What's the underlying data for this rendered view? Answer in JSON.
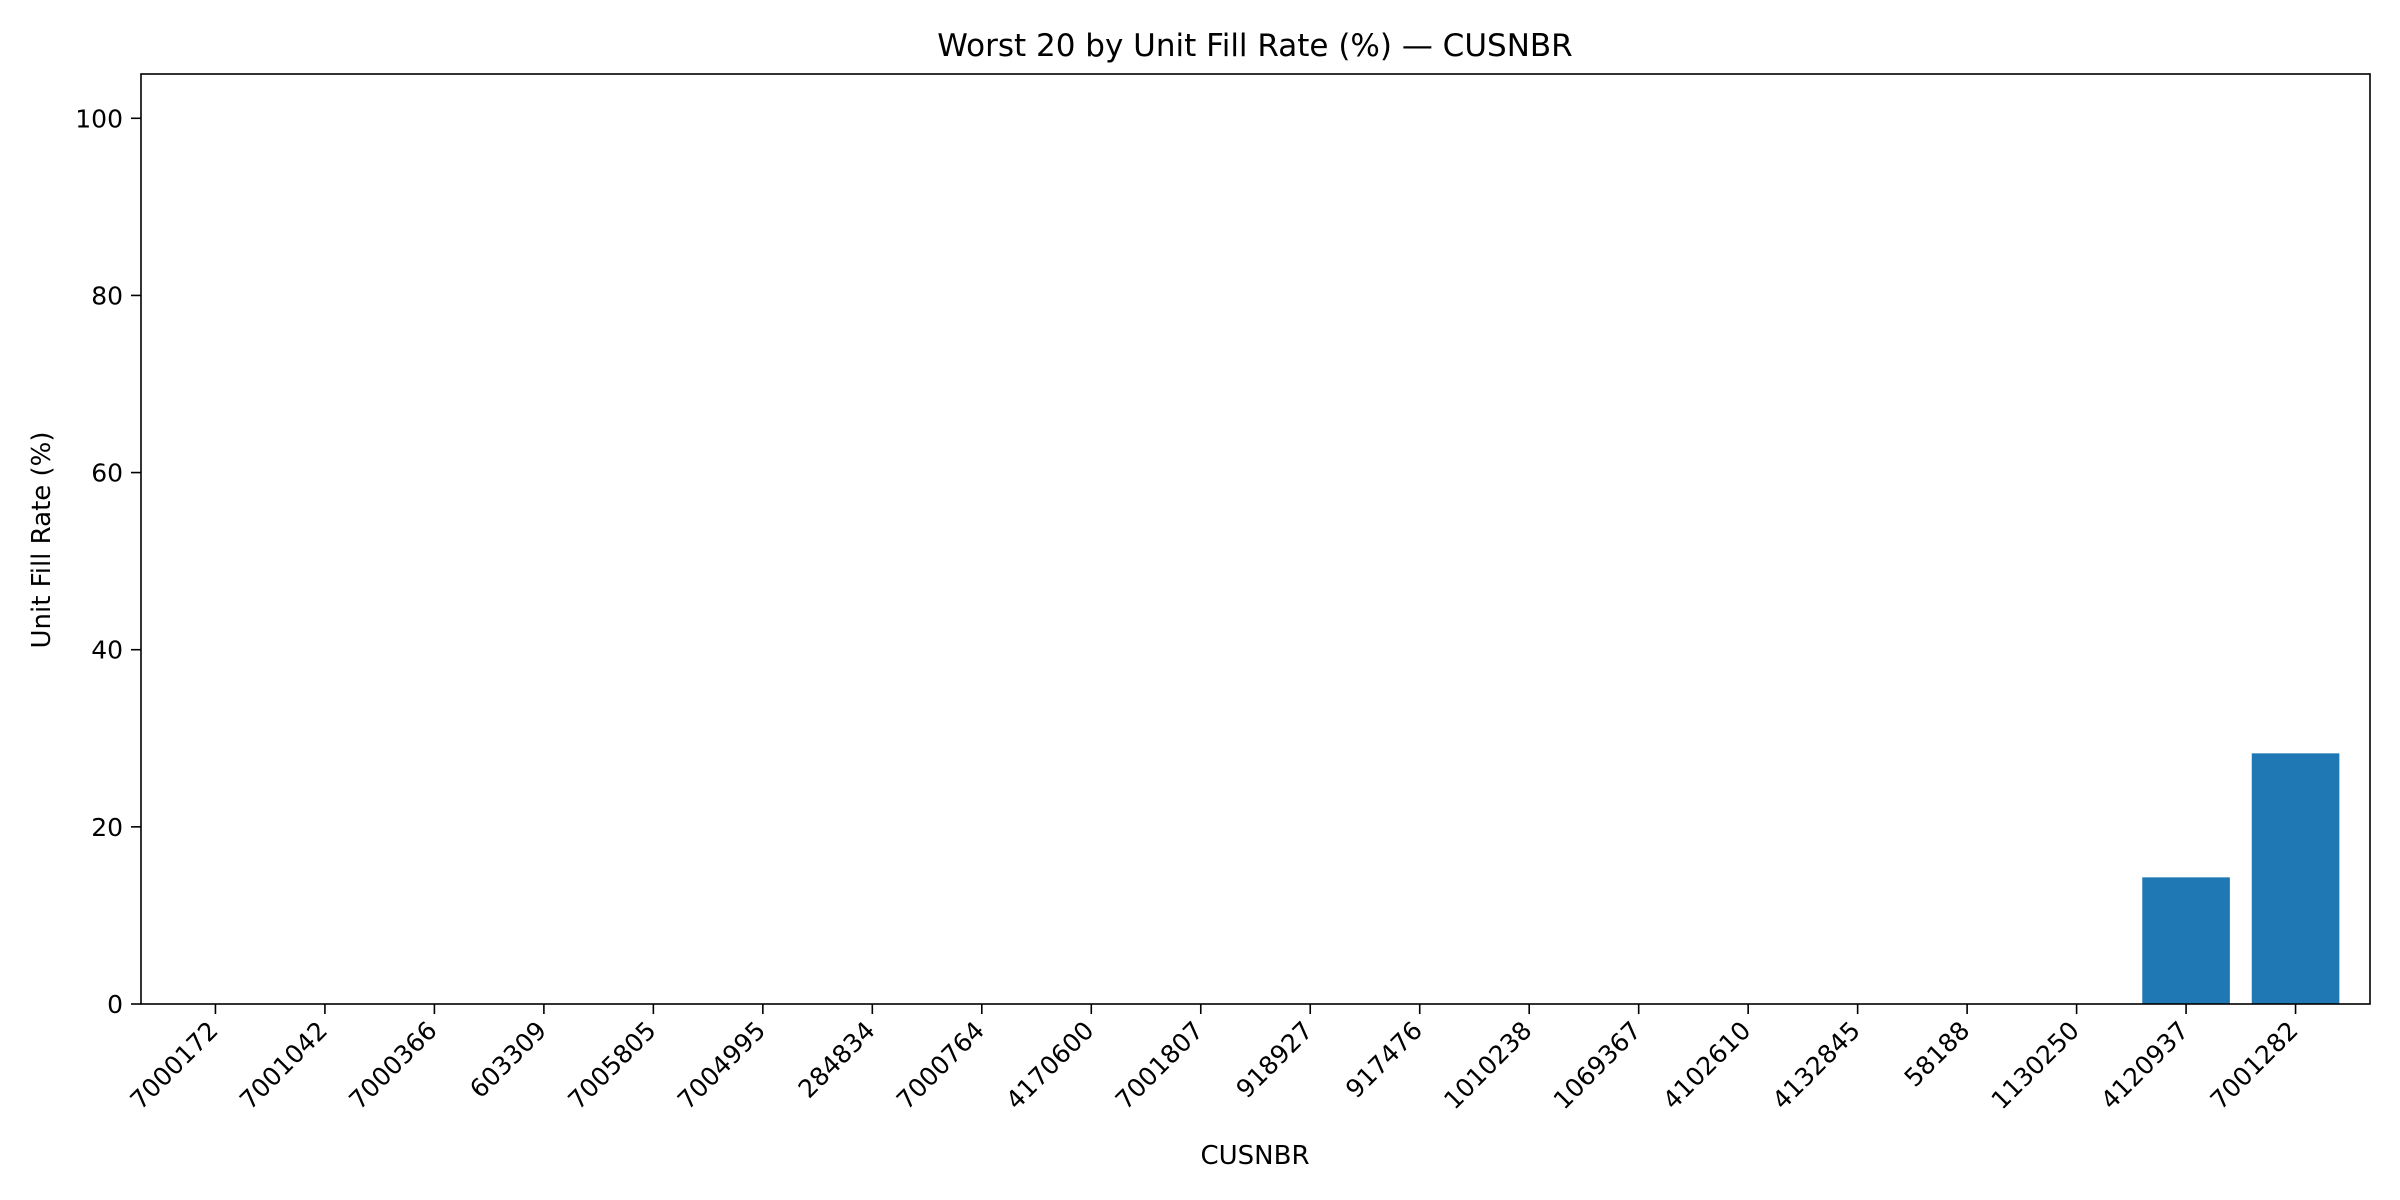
{
  "chart_data": {
    "type": "bar",
    "title": "Worst 20 by Unit Fill Rate (%) — CUSNBR",
    "xlabel": "CUSNBR",
    "ylabel": "Unit Fill Rate (%)",
    "categories": [
      "7000172",
      "7001042",
      "7000366",
      "603309",
      "7005805",
      "7004995",
      "284834",
      "7000764",
      "4170600",
      "7001807",
      "918927",
      "917476",
      "1010238",
      "1069367",
      "4102610",
      "4132845",
      "58188",
      "1130250",
      "4120937",
      "7001282"
    ],
    "values": [
      0,
      0,
      0,
      0,
      0,
      0,
      0,
      0,
      0,
      0,
      0,
      0,
      0,
      0,
      0,
      0,
      0,
      0,
      14.3,
      28.3
    ],
    "ylim": [
      0,
      105
    ],
    "yticks": [
      0,
      20,
      40,
      60,
      80,
      100
    ],
    "grid": false,
    "bar_color": "#1f77b4"
  }
}
